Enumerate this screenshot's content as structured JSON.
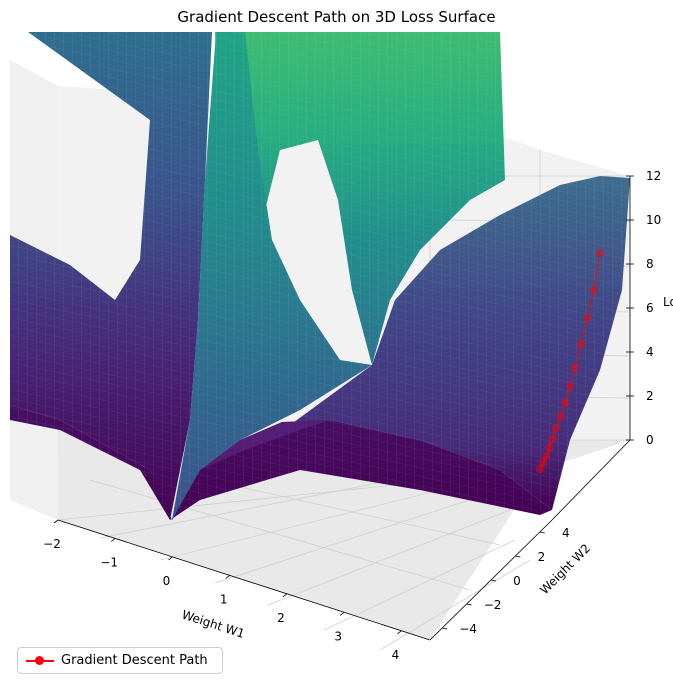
{
  "chart_data": {
    "type": "surface3d",
    "title": "Gradient Descent Path on 3D Loss Surface",
    "xlabel": "Weight W1",
    "ylabel": "Weight W2",
    "zlabel": "Loss",
    "xlim": [
      -2,
      4.5
    ],
    "ylim": [
      -5,
      5
    ],
    "zlim": [
      0,
      12
    ],
    "x_ticks": [
      -2,
      -1,
      0,
      1,
      2,
      3,
      4
    ],
    "y_ticks": [
      -4,
      -2,
      0,
      2,
      4
    ],
    "z_ticks": [
      0,
      2,
      4,
      6,
      8,
      10,
      12
    ],
    "colormap": "viridis",
    "grid": true,
    "legend_position": "bottom-left",
    "series": [
      {
        "name": "Gradient Descent Path",
        "color": "#ff0000",
        "marker": "circle",
        "points": [
          {
            "w1": 4.4,
            "w2": 4.2,
            "loss": 8.5
          },
          {
            "w1": 4.4,
            "w2": 4.0,
            "loss": 7.0
          },
          {
            "w1": 4.4,
            "w2": 3.8,
            "loss": 5.9
          },
          {
            "w1": 4.4,
            "w2": 3.6,
            "loss": 4.9
          },
          {
            "w1": 4.4,
            "w2": 3.4,
            "loss": 4.0
          },
          {
            "w1": 4.4,
            "w2": 3.25,
            "loss": 3.3
          },
          {
            "w1": 4.4,
            "w2": 3.1,
            "loss": 2.7
          },
          {
            "w1": 4.4,
            "w2": 2.95,
            "loss": 2.2
          },
          {
            "w1": 4.4,
            "w2": 2.8,
            "loss": 1.8
          },
          {
            "w1": 4.4,
            "w2": 2.7,
            "loss": 1.4
          },
          {
            "w1": 4.4,
            "w2": 2.6,
            "loss": 1.1
          },
          {
            "w1": 4.4,
            "w2": 2.5,
            "loss": 0.8
          },
          {
            "w1": 4.4,
            "w2": 2.4,
            "loss": 0.6
          },
          {
            "w1": 4.4,
            "w2": 2.3,
            "loss": 0.4
          }
        ]
      }
    ]
  }
}
